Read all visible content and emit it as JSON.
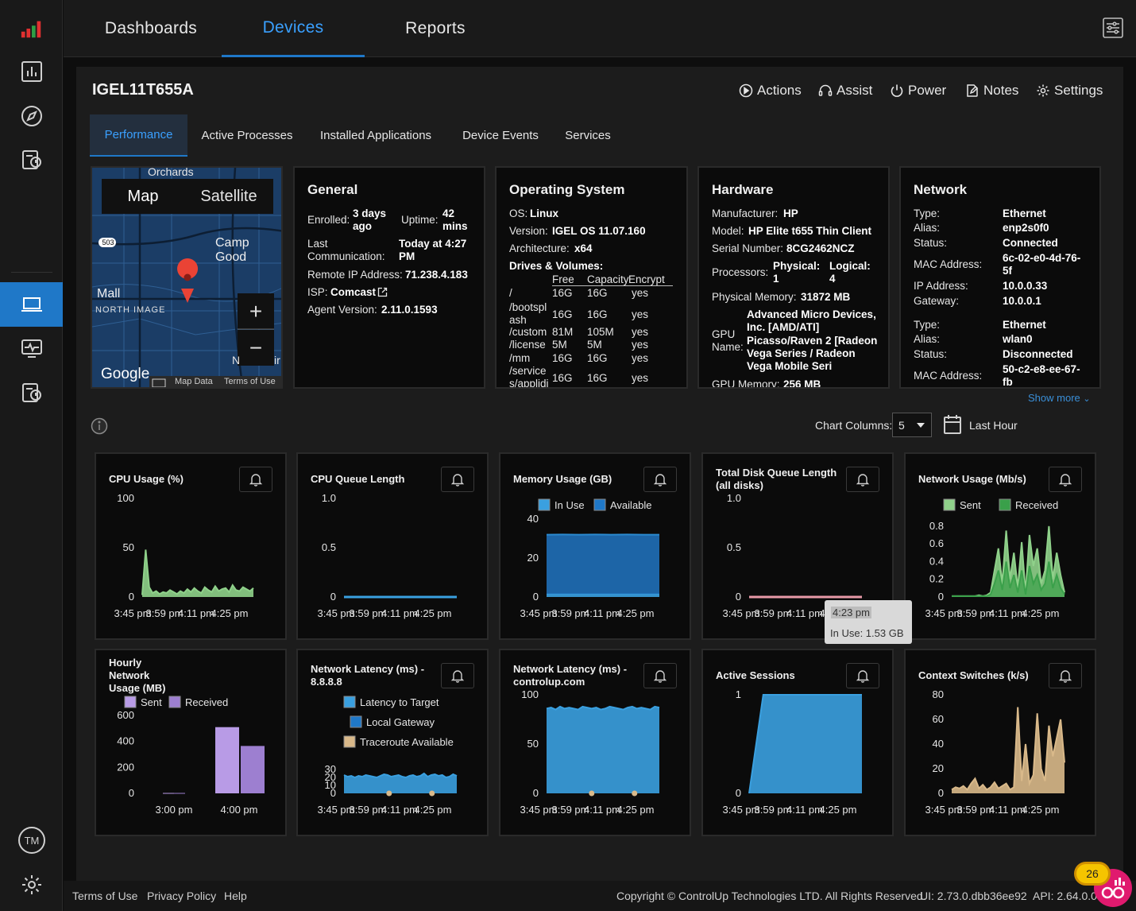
{
  "nav": {
    "tabs": [
      {
        "label": "Dashboards"
      },
      {
        "label": "Devices"
      },
      {
        "label": "Reports"
      }
    ]
  },
  "device": {
    "name": "IGEL11T655A"
  },
  "actions": {
    "actions": "Actions",
    "assist": "Assist",
    "power": "Power",
    "notes": "Notes",
    "settings": "Settings"
  },
  "subtabs": [
    "Performance",
    "Active Processes",
    "Installed Applications",
    "Device Events",
    "Services"
  ],
  "map": {
    "map_btn": "Map",
    "satellite_btn": "Satellite",
    "label_orchards": "Orchards",
    "label_camp": "Camp Good",
    "label_mall": "Mall",
    "label_north": "NORTH IMAGE",
    "route": "503",
    "google": "Google",
    "map_data": "Map Data",
    "terms": "Terms of Use",
    "zoom_in": "+",
    "zoom_out": "−",
    "edge_n": "N",
    "edge_ir": "ir"
  },
  "general": {
    "title": "General",
    "enrolled_label": "Enrolled:",
    "enrolled_l1": "3 days",
    "enrolled_l2": "ago",
    "uptime_label": "Uptime:",
    "uptime_l1": "42",
    "uptime_l2": "mins",
    "lastcomm_l1": "Last",
    "lastcomm_l2": "Communication:",
    "lastcomm_v1": "Today at 4:27",
    "lastcomm_v2": "PM",
    "remote_ip_label": "Remote IP Address:",
    "remote_ip": "71.238.4.183",
    "isp_label": "ISP:",
    "isp": "Comcast",
    "agent_label": "Agent Version:",
    "agent": "2.11.0.1593"
  },
  "os": {
    "title": "Operating System",
    "os_label": "OS:",
    "os": "Linux",
    "version_label": "Version:",
    "version": "IGEL OS 11.07.160",
    "arch_label": "Architecture:",
    "arch": "x64",
    "drives_label": "Drives & Volumes:",
    "cols": [
      "Free",
      "Capacity",
      "Encrypt"
    ],
    "drives": [
      {
        "name": "/",
        "free": "16G",
        "cap": "16G",
        "enc": "yes"
      },
      {
        "name": "/bootspl",
        "name2": "ash",
        "free": "16G",
        "cap": "16G",
        "enc": "yes"
      },
      {
        "name": "/custom",
        "free": "81M",
        "cap": "105M",
        "enc": "yes"
      },
      {
        "name": "/license",
        "free": "5M",
        "cap": "5M",
        "enc": "yes"
      },
      {
        "name": "/mm",
        "free": "16G",
        "cap": "16G",
        "enc": "yes"
      },
      {
        "name": "/service",
        "name2": "s/applidi",
        "free": "16G",
        "cap": "16G",
        "enc": "yes"
      }
    ]
  },
  "hardware": {
    "title": "Hardware",
    "manufacturer_label": "Manufacturer:",
    "manufacturer": "HP",
    "model_label": "Model:",
    "model": "HP Elite t655 Thin Client",
    "serial_label": "Serial Number:",
    "serial": "8CG2462NCZ",
    "processors_label": "Processors:",
    "physical_label": "Physical:",
    "physical": "1",
    "logical_label": "Logical:",
    "logical": "4",
    "memory_label": "Physical Memory:",
    "memory": "31872 MB",
    "gpu_label_1": "GPU",
    "gpu_label_2": "Name:",
    "gpu_lines": [
      "Advanced Micro Devices,",
      "Inc. [AMD/ATI]",
      "Picasso/Raven 2 [Radeon",
      "Vega Series / Radeon",
      "Vega Mobile Seri"
    ],
    "gpu_mem_label": "GPU Memory:",
    "gpu_mem": "256 MB"
  },
  "network": {
    "title": "Network",
    "adapters": [
      {
        "type_label": "Type:",
        "type": "Ethernet",
        "alias_label": "Alias:",
        "alias": "enp2s0f0",
        "status_label": "Status:",
        "status": "Connected",
        "mac_label": "MAC Address:",
        "mac_l1": "6c-02-e0-4d-76-",
        "mac_l2": "5f",
        "ip_label": "IP Address:",
        "ip": "10.0.0.33",
        "gw_label": "Gateway:",
        "gw": "10.0.0.1"
      },
      {
        "type_label": "Type:",
        "type": "Ethernet",
        "alias_label": "Alias:",
        "alias": "wlan0",
        "status_label": "Status:",
        "status": "Disconnected",
        "mac_label": "MAC Address:",
        "mac_l1": "50-c2-e8-ee-67-",
        "mac_l2": "fb"
      }
    ],
    "show_more": "Show more"
  },
  "controls": {
    "chart_columns_label": "Chart Columns:",
    "chart_columns": "5",
    "time_range": "Last Hour"
  },
  "tooltip": {
    "time": "4:23 pm",
    "value": "In Use: 1.53 GB"
  },
  "colors": {
    "accent": "#1f78c8",
    "green": "#8fd18a",
    "blue": "#3aa0e0",
    "purple": "#b89be6",
    "tan": "#d9b98a",
    "pink": "#e89aa8"
  },
  "chart_data": [
    {
      "id": "cpu",
      "type": "area",
      "title": "CPU Usage (%)",
      "yticks": [
        "100",
        "50",
        "0"
      ],
      "ylim": [
        0,
        100
      ],
      "xticks": [
        "3:45 pm",
        "3:59 pm",
        "4:11 pm",
        "4:25 pm"
      ],
      "series": [
        {
          "values": [
            2,
            48,
            10,
            4,
            6,
            3,
            5,
            4,
            7,
            5,
            3,
            6,
            4,
            8,
            5,
            9,
            6,
            4,
            10,
            7,
            5,
            11,
            6,
            8,
            9,
            5,
            12,
            7,
            6,
            10,
            8,
            6,
            9
          ]
        }
      ]
    },
    {
      "id": "cpuq",
      "type": "line",
      "title": "CPU Queue Length",
      "yticks": [
        "1.0",
        "0.5",
        "0"
      ],
      "ylim": [
        0,
        1
      ],
      "xticks": [
        "3:45 pm",
        "3:59 pm",
        "4:11 pm",
        "4:25 pm"
      ],
      "series": [
        {
          "values": [
            0,
            0,
            0,
            0,
            0,
            0,
            0,
            0
          ]
        }
      ]
    },
    {
      "id": "mem",
      "type": "area",
      "title": "Memory Usage (GB)",
      "legend": [
        "In Use",
        "Available"
      ],
      "yticks": [
        "40",
        "20",
        "0"
      ],
      "ylim": [
        0,
        40
      ],
      "xticks": [
        "3:45 pm",
        "3:59 pm",
        "4:11 pm",
        "4:25 pm"
      ],
      "series": [
        {
          "name": "In Use",
          "values": [
            1.5,
            1.5,
            1.5,
            1.5,
            1.5,
            1.5,
            1.5,
            1.5
          ]
        },
        {
          "name": "Available",
          "values": [
            30.5,
            30.6,
            30.5,
            30.6,
            30.5,
            30.6,
            30.5,
            30.5
          ]
        }
      ]
    },
    {
      "id": "diskq",
      "type": "line",
      "title": "Total Disk Queue Length (all disks)",
      "yticks": [
        "1.0",
        "0.5",
        "0"
      ],
      "ylim": [
        0,
        1
      ],
      "xticks": [
        "3:45 pm",
        "3:59 pm",
        "4:11 pm",
        "4:25 pm"
      ],
      "series": [
        {
          "values": [
            0,
            0,
            0,
            0,
            0,
            0,
            0,
            0
          ]
        }
      ]
    },
    {
      "id": "netu",
      "type": "area",
      "title": "Network Usage (Mb/s)",
      "legend": [
        "Sent",
        "Received"
      ],
      "yticks": [
        "0.8",
        "0.6",
        "0.4",
        "0.2",
        "0"
      ],
      "ylim": [
        0,
        0.88
      ],
      "xticks": [
        "3:45 pm",
        "3:59 pm",
        "4:11 pm",
        "4:25 pm"
      ],
      "series": [
        {
          "name": "Received",
          "values": [
            0.01,
            0.01,
            0.01,
            0.01,
            0.01,
            0.01,
            0.01,
            0.02,
            0.01,
            0.02,
            0.05,
            0.3,
            0.55,
            0.15,
            0.75,
            0.2,
            0.5,
            0.1,
            0.62,
            0.05,
            0.7,
            0.35,
            0.55,
            0.15,
            0.3,
            0.8,
            0.2,
            0.5,
            0.25,
            0.05
          ]
        },
        {
          "name": "Sent",
          "values": [
            0.01,
            0.01,
            0.01,
            0.01,
            0.01,
            0.01,
            0.01,
            0.01,
            0.01,
            0.01,
            0.03,
            0.15,
            0.3,
            0.08,
            0.4,
            0.1,
            0.25,
            0.05,
            0.3,
            0.03,
            0.35,
            0.15,
            0.25,
            0.08,
            0.15,
            0.4,
            0.1,
            0.25,
            0.1,
            0.03
          ]
        }
      ]
    },
    {
      "id": "hourly",
      "type": "bar",
      "title": "Hourly Network Usage (MB)",
      "legend": [
        "Sent",
        "Received"
      ],
      "yticks": [
        "600",
        "400",
        "200",
        "0"
      ],
      "ylim": [
        0,
        600
      ],
      "xticks": [
        "3:00 pm",
        "4:00 pm"
      ],
      "categories": [
        "3:00 pm",
        "4:00 pm"
      ],
      "series": [
        {
          "name": "Sent",
          "values": [
            3,
            510
          ]
        },
        {
          "name": "Received",
          "values": [
            3,
            365
          ]
        }
      ]
    },
    {
      "id": "lat1",
      "type": "area",
      "title": "Network Latency (ms) - 8.8.8.8",
      "legend": [
        "Latency to Target",
        "Local Gateway",
        "Traceroute Available"
      ],
      "yticks": [
        "30",
        "20",
        "10",
        "0"
      ],
      "ylim": [
        0,
        30
      ],
      "xticks": [
        "3:45 pm",
        "3:59 pm",
        "4:11 pm",
        "4:25 pm"
      ],
      "series": [
        {
          "name": "Latency to Target",
          "values": [
            23,
            21,
            22,
            20,
            22,
            21,
            23,
            22,
            21,
            20,
            22,
            24,
            23,
            21,
            22,
            23,
            21,
            20,
            22,
            23,
            21,
            22,
            25,
            21,
            23,
            24,
            22,
            23,
            20,
            21,
            24,
            22
          ]
        }
      ]
    },
    {
      "id": "lat2",
      "type": "area",
      "title": "Network Latency (ms) - controlup.com",
      "yticks": [
        "100",
        "50",
        "0"
      ],
      "ylim": [
        0,
        100
      ],
      "xticks": [
        "3:45 pm",
        "3:59 pm",
        "4:11 pm",
        "4:25 pm"
      ],
      "series": [
        {
          "values": [
            86,
            87,
            85,
            88,
            86,
            87,
            86,
            85,
            88,
            87,
            86,
            87,
            85,
            86,
            88,
            87,
            86,
            85,
            87,
            88,
            86,
            87,
            86,
            85,
            88,
            87
          ]
        }
      ]
    },
    {
      "id": "sess",
      "type": "area",
      "title": "Active Sessions",
      "yticks": [
        "1",
        "0"
      ],
      "ylim": [
        0,
        1
      ],
      "xticks": [
        "3:45 pm",
        "3:59 pm",
        "4:11 pm",
        "4:25 pm"
      ],
      "series": [
        {
          "values": [
            0,
            1,
            1,
            1,
            1,
            1,
            1,
            1,
            1
          ]
        }
      ]
    },
    {
      "id": "ctx",
      "type": "area",
      "title": "Context Switches (k/s)",
      "yticks": [
        "80",
        "60",
        "40",
        "20",
        "0"
      ],
      "ylim": [
        0,
        80
      ],
      "xticks": [
        "3:45 pm",
        "3:59 pm",
        "4:11 pm",
        "4:25 pm"
      ],
      "series": [
        {
          "values": [
            3,
            5,
            4,
            6,
            3,
            8,
            12,
            4,
            7,
            3,
            5,
            9,
            4,
            6,
            8,
            3,
            5,
            70,
            10,
            40,
            8,
            15,
            65,
            20,
            10,
            55,
            30,
            45,
            60,
            25
          ]
        }
      ]
    }
  ],
  "footer": {
    "terms": "Terms of Use",
    "privacy": "Privacy Policy",
    "help": "Help",
    "copyright": "Copyright © ControlUp Technologies LTD. All Rights Reserved.",
    "ui": "UI: 2.73.0.dbb36ee92",
    "api": "API: 2.64.0.0"
  },
  "badge": {
    "count": "26"
  }
}
